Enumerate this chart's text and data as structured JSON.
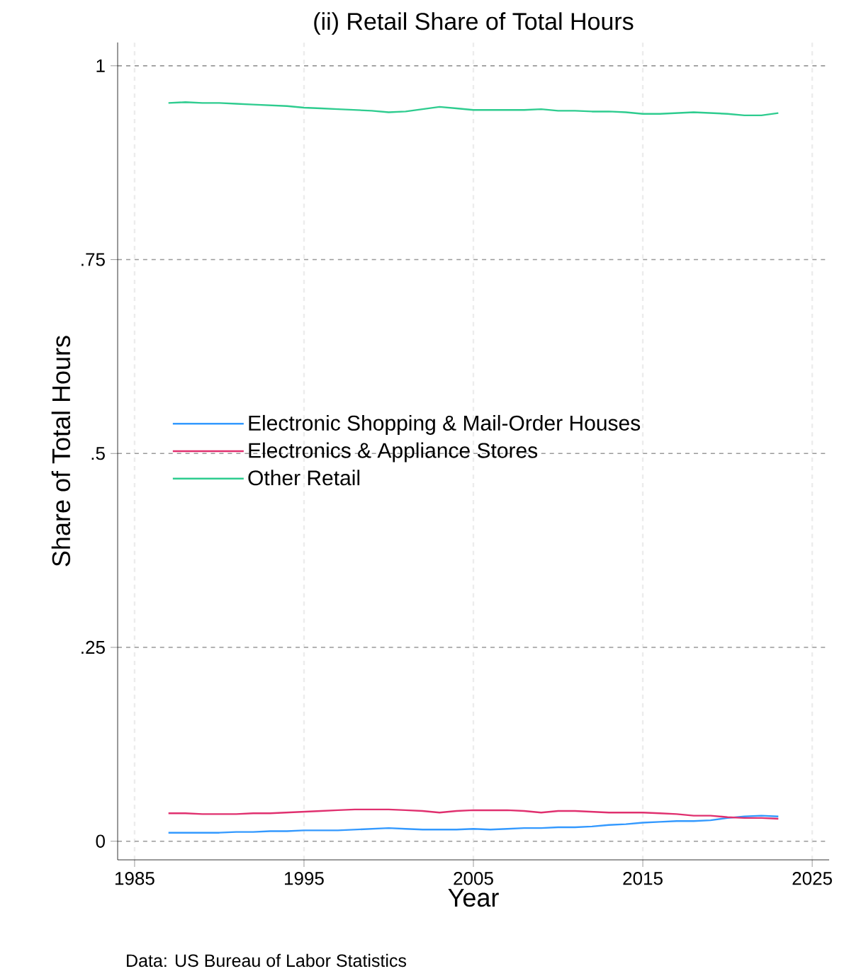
{
  "chart_data": {
    "type": "line",
    "title": "(ii) Retail Share of Total Hours",
    "xlabel": "Year",
    "ylabel": "Share of Total Hours",
    "annotations": [
      "Data: US Bureau of Labor Statistics"
    ],
    "x": [
      1987,
      1988,
      1989,
      1990,
      1991,
      1992,
      1993,
      1994,
      1995,
      1996,
      1997,
      1998,
      1999,
      2000,
      2001,
      2002,
      2003,
      2004,
      2005,
      2006,
      2007,
      2008,
      2009,
      2010,
      2011,
      2012,
      2013,
      2014,
      2015,
      2016,
      2017,
      2018,
      2019,
      2020,
      2021,
      2022,
      2023
    ],
    "series": [
      {
        "name": "Electronic Shopping & Mail-Order Houses",
        "color": "#3399ff",
        "values": [
          0.011,
          0.011,
          0.011,
          0.011,
          0.012,
          0.012,
          0.013,
          0.013,
          0.014,
          0.014,
          0.014,
          0.015,
          0.016,
          0.017,
          0.016,
          0.015,
          0.015,
          0.015,
          0.016,
          0.015,
          0.016,
          0.017,
          0.017,
          0.018,
          0.018,
          0.019,
          0.021,
          0.022,
          0.024,
          0.025,
          0.026,
          0.026,
          0.027,
          0.03,
          0.032,
          0.033,
          0.032
        ]
      },
      {
        "name": "Electronics & Appliance Stores",
        "color": "#e0306f",
        "values": [
          0.036,
          0.036,
          0.035,
          0.035,
          0.035,
          0.036,
          0.036,
          0.037,
          0.038,
          0.039,
          0.04,
          0.041,
          0.041,
          0.041,
          0.04,
          0.039,
          0.037,
          0.039,
          0.04,
          0.04,
          0.04,
          0.039,
          0.037,
          0.039,
          0.039,
          0.038,
          0.037,
          0.037,
          0.037,
          0.036,
          0.035,
          0.033,
          0.033,
          0.031,
          0.03,
          0.03,
          0.029
        ]
      },
      {
        "name": "Other Retail",
        "color": "#2ecc8f",
        "values": [
          0.952,
          0.953,
          0.952,
          0.952,
          0.951,
          0.95,
          0.949,
          0.948,
          0.946,
          0.945,
          0.944,
          0.943,
          0.942,
          0.94,
          0.941,
          0.944,
          0.947,
          0.945,
          0.943,
          0.943,
          0.943,
          0.943,
          0.944,
          0.942,
          0.942,
          0.941,
          0.941,
          0.94,
          0.938,
          0.938,
          0.939,
          0.94,
          0.939,
          0.938,
          0.936,
          0.936,
          0.939
        ]
      }
    ],
    "xlim": [
      1984,
      2026
    ],
    "ylim": [
      -0.024,
      1.03
    ],
    "xticks": [
      1985,
      1995,
      2005,
      2015,
      2025
    ],
    "yticks": [
      0,
      {
        "value": 0.25,
        "label": ".25"
      },
      {
        "value": 0.5,
        "label": ".5"
      },
      {
        "value": 0.75,
        "label": ".75"
      },
      1
    ],
    "grid": true,
    "legend": "left",
    "marker": "none",
    "line_style": "solid"
  }
}
